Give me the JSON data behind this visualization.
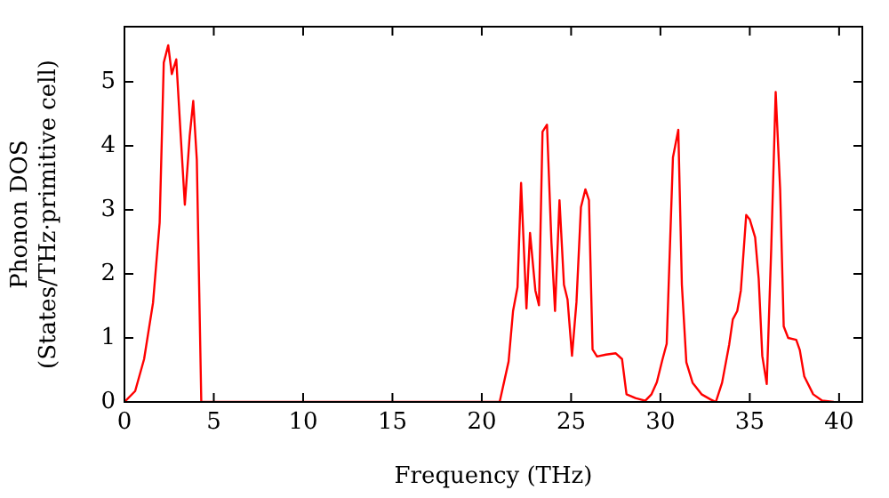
{
  "chart_data": {
    "type": "line",
    "xlabel": "Frequency (THz)",
    "ylabel": "Phonon DOS\n(States/THz·primitive cell)",
    "xlim": [
      0,
      41.3
    ],
    "xticks": [
      0,
      5,
      10,
      15,
      20,
      25,
      30,
      35,
      40
    ],
    "ylim": [
      0,
      5.86
    ],
    "yticks": [
      0,
      1,
      2,
      3,
      4,
      5
    ],
    "grid": false,
    "legend": false,
    "marker": "none",
    "line_style": "solid",
    "series": [
      {
        "color": "#ff0000",
        "x": [
          0,
          0.6,
          1.1,
          1.6,
          1.97,
          2.2,
          2.45,
          2.65,
          2.9,
          3.15,
          3.38,
          3.65,
          3.85,
          4.05,
          4.3,
          21.0,
          21.5,
          21.75,
          22.0,
          22.2,
          22.5,
          22.7,
          23.0,
          23.2,
          23.4,
          23.65,
          23.9,
          24.1,
          24.35,
          24.6,
          24.8,
          25.05,
          25.3,
          25.55,
          25.8,
          26.0,
          26.2,
          26.45,
          26.95,
          27.5,
          27.85,
          28.1,
          28.6,
          29.15,
          29.5,
          29.8,
          30.1,
          30.35,
          30.7,
          31.0,
          31.2,
          31.45,
          31.8,
          32.3,
          32.8,
          33.1,
          33.45,
          33.85,
          34.05,
          34.3,
          34.5,
          34.8,
          35.0,
          35.3,
          35.5,
          35.7,
          35.95,
          36.2,
          36.45,
          36.7,
          36.9,
          37.15,
          37.6,
          37.8,
          38.05,
          38.55,
          39.05,
          39.7
        ],
        "values": [
          0,
          0.17,
          0.67,
          1.55,
          2.8,
          5.3,
          5.57,
          5.12,
          5.35,
          4.15,
          3.08,
          4.15,
          4.7,
          3.78,
          0,
          0,
          0.63,
          1.42,
          1.79,
          3.42,
          1.46,
          2.64,
          1.74,
          1.51,
          4.22,
          4.33,
          2.48,
          1.42,
          3.15,
          1.83,
          1.6,
          0.72,
          1.56,
          3.04,
          3.32,
          3.15,
          0.82,
          0.71,
          0.74,
          0.76,
          0.67,
          0.12,
          0.06,
          0.02,
          0.12,
          0.31,
          0.65,
          0.91,
          3.82,
          4.25,
          1.83,
          0.62,
          0.3,
          0.12,
          0.04,
          0,
          0.3,
          0.9,
          1.29,
          1.42,
          1.74,
          2.92,
          2.85,
          2.57,
          1.92,
          0.72,
          0.28,
          2.39,
          4.84,
          3.32,
          1.18,
          1.0,
          0.97,
          0.81,
          0.4,
          0.12,
          0.02,
          0
        ]
      }
    ]
  }
}
